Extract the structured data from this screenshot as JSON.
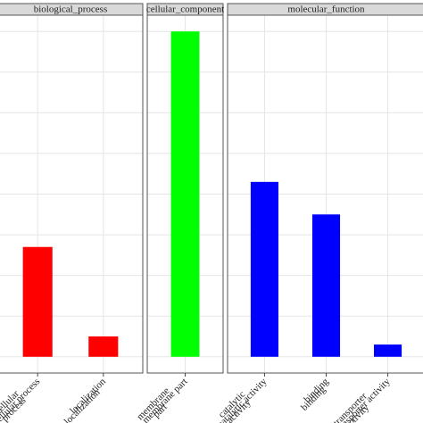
{
  "chart_data": [
    {
      "type": "bar",
      "title": "biological_process",
      "categories": [
        "cellular process",
        "localization"
      ],
      "values": [
        2.7,
        0.5
      ],
      "color": "#ff0000",
      "ylim": [
        -0.4,
        8.4
      ],
      "yticks": [
        0,
        1,
        2,
        3,
        4,
        5,
        6,
        7,
        8
      ],
      "grid": true
    },
    {
      "type": "bar",
      "title": "cellular_component",
      "categories": [
        "membrane part"
      ],
      "values": [
        8.0
      ],
      "color": "#00ff00",
      "ylim": [
        -0.4,
        8.4
      ],
      "yticks": [
        0,
        1,
        2,
        3,
        4,
        5,
        6,
        7,
        8
      ],
      "grid": true
    },
    {
      "type": "bar",
      "title": "molecular_function",
      "categories": [
        "catalytic activity",
        "binding",
        "transporter activity"
      ],
      "values": [
        4.3,
        3.5,
        0.3
      ],
      "color": "#0000ff",
      "ylim": [
        -0.4,
        8.4
      ],
      "yticks": [
        0,
        1,
        2,
        3,
        4,
        5,
        6,
        7,
        8
      ],
      "grid": true
    }
  ]
}
